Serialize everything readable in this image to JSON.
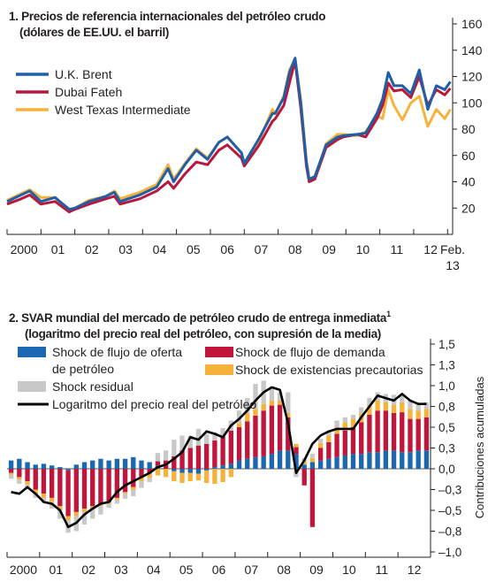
{
  "chart_data": [
    {
      "type": "line",
      "title": "1.  Precios de referencia internacionales del petróleo crudo",
      "subtitle": "(dólares de EE.UU. el barril)",
      "x_tick_labels": [
        "2000",
        "01",
        "02",
        "03",
        "04",
        "05",
        "06",
        "07",
        "08",
        "09",
        "10",
        "11",
        "12",
        "Feb.",
        "13"
      ],
      "y_ticks": [
        "20",
        "40",
        "60",
        "80",
        "100",
        "120",
        "140",
        "160"
      ],
      "ylim": [
        0,
        165
      ],
      "x_range": [
        "2000-01",
        "2013-02"
      ],
      "legend_position": "top-left",
      "grid": false,
      "x_dates": [
        "2000-01",
        "2000-06",
        "2000-09",
        "2001-01",
        "2001-06",
        "2001-11",
        "2002-01",
        "2002-06",
        "2002-12",
        "2003-03",
        "2003-05",
        "2003-12",
        "2004-06",
        "2004-10",
        "2004-12",
        "2005-04",
        "2005-08",
        "2005-12",
        "2006-04",
        "2006-07",
        "2006-12",
        "2007-01",
        "2007-06",
        "2007-11",
        "2007-12",
        "2008-03",
        "2008-05",
        "2008-07",
        "2008-09",
        "2008-11",
        "2008-12",
        "2009-02",
        "2009-06",
        "2009-10",
        "2009-12",
        "2010-05",
        "2010-08",
        "2010-12",
        "2011-02",
        "2011-04",
        "2011-06",
        "2011-09",
        "2011-12",
        "2012-03",
        "2012-06",
        "2012-09",
        "2012-12",
        "2013-02"
      ],
      "series": [
        {
          "name": "U.K. Brent",
          "color": "#1f5fa8",
          "values": [
            25,
            30,
            33,
            25,
            28,
            19,
            20,
            25,
            29,
            32,
            25,
            30,
            36,
            50,
            40,
            53,
            64,
            57,
            70,
            74,
            62,
            54,
            72,
            92,
            92,
            104,
            123,
            134,
            100,
            55,
            42,
            44,
            68,
            74,
            75,
            76,
            77,
            92,
            103,
            123,
            113,
            113,
            107,
            125,
            95,
            113,
            110,
            116
          ]
        },
        {
          "name": "Dubai Fateh",
          "color": "#b7183c",
          "values": [
            23,
            27,
            30,
            23,
            25,
            17,
            19,
            23,
            27,
            29,
            23,
            27,
            33,
            40,
            35,
            46,
            55,
            53,
            64,
            68,
            58,
            52,
            67,
            86,
            88,
            98,
            115,
            132,
            96,
            52,
            40,
            42,
            66,
            72,
            74,
            76,
            74,
            88,
            98,
            115,
            109,
            110,
            104,
            120,
            98,
            110,
            106,
            111
          ]
        },
        {
          "name": "West Texas Intermediate",
          "color": "#f5b33c",
          "values": [
            26,
            31,
            34,
            28,
            28,
            19,
            20,
            26,
            29,
            33,
            27,
            32,
            38,
            53,
            42,
            54,
            65,
            58,
            70,
            74,
            62,
            54,
            70,
            95,
            92,
            105,
            125,
            133,
            103,
            56,
            42,
            42,
            69,
            76,
            76,
            75,
            78,
            90,
            88,
            110,
            98,
            87,
            100,
            105,
            82,
            95,
            88,
            95
          ]
        }
      ]
    },
    {
      "type": "bar",
      "title": "2. SVAR mundial del mercado de petróleo crudo de entrega inmediata",
      "title_footnote": "1",
      "subtitle": "(logaritmo del precio real del petróleo, con supresión de la media)",
      "ylabel": "Contribuciones acumuladas",
      "x_tick_labels": [
        "2000",
        "01",
        "02",
        "03",
        "04",
        "05",
        "06",
        "07",
        "08",
        "09",
        "10",
        "11",
        "12"
      ],
      "y_ticks": [
        "1,5",
        "1,3",
        "1,0",
        "0,8",
        "0,5",
        "0,3",
        "0,0",
        "–0,3",
        "–0,5",
        "–0,8",
        "–1,0"
      ],
      "ylim": [
        -1.0,
        1.5
      ],
      "x_range": [
        "2000-Q1",
        "2012-Q4"
      ],
      "legend_position": "top-left",
      "stacked": true,
      "categories": [
        "2000-Q1",
        "2000-Q2",
        "2000-Q3",
        "2000-Q4",
        "2001-Q1",
        "2001-Q2",
        "2001-Q3",
        "2001-Q4",
        "2002-Q1",
        "2002-Q2",
        "2002-Q3",
        "2002-Q4",
        "2003-Q1",
        "2003-Q2",
        "2003-Q3",
        "2003-Q4",
        "2004-Q1",
        "2004-Q2",
        "2004-Q3",
        "2004-Q4",
        "2005-Q1",
        "2005-Q2",
        "2005-Q3",
        "2005-Q4",
        "2006-Q1",
        "2006-Q2",
        "2006-Q3",
        "2006-Q4",
        "2007-Q1",
        "2007-Q2",
        "2007-Q3",
        "2007-Q4",
        "2008-Q1",
        "2008-Q2",
        "2008-Q3",
        "2008-Q4",
        "2009-Q1",
        "2009-Q2",
        "2009-Q3",
        "2009-Q4",
        "2010-Q1",
        "2010-Q2",
        "2010-Q3",
        "2010-Q4",
        "2011-Q1",
        "2011-Q2",
        "2011-Q3",
        "2011-Q4",
        "2012-Q1",
        "2012-Q2",
        "2012-Q3",
        "2012-Q4"
      ],
      "series": [
        {
          "name": "Shock de flujo de oferta de petróleo",
          "color": "#1b67b0",
          "values": [
            0.1,
            0.12,
            0.08,
            0.05,
            0.06,
            0.04,
            0.02,
            -0.02,
            0.05,
            0.08,
            0.1,
            0.12,
            0.1,
            0.12,
            0.12,
            0.14,
            0.1,
            0.08,
            0.04,
            0.0,
            -0.03,
            -0.05,
            -0.05,
            -0.06,
            -0.02,
            0.02,
            0.04,
            0.06,
            0.1,
            0.12,
            0.14,
            0.15,
            0.18,
            0.22,
            0.22,
            0.18,
            0.05,
            0.08,
            0.1,
            0.12,
            0.14,
            0.16,
            0.18,
            0.18,
            0.2,
            0.2,
            0.22,
            0.22,
            0.2,
            0.2,
            0.22,
            0.22
          ]
        },
        {
          "name": "Shock de flujo de demanda",
          "color": "#c0163c",
          "values": [
            -0.05,
            -0.1,
            -0.15,
            -0.25,
            -0.3,
            -0.35,
            -0.45,
            -0.55,
            -0.52,
            -0.48,
            -0.45,
            -0.42,
            -0.4,
            -0.35,
            -0.28,
            -0.22,
            -0.1,
            -0.05,
            0.05,
            0.1,
            0.15,
            0.22,
            0.25,
            0.28,
            0.3,
            0.32,
            0.35,
            0.4,
            0.4,
            0.45,
            0.5,
            0.55,
            0.58,
            0.55,
            0.4,
            0.08,
            -0.2,
            -0.7,
            0.15,
            0.2,
            0.28,
            0.3,
            0.32,
            0.38,
            0.45,
            0.5,
            0.48,
            0.45,
            0.48,
            0.4,
            0.38,
            0.4
          ]
        },
        {
          "name": "Shock de existencias precautorias",
          "color": "#f5b33c",
          "values": [
            -0.02,
            -0.03,
            -0.04,
            -0.05,
            -0.05,
            -0.05,
            -0.05,
            -0.05,
            -0.05,
            -0.04,
            -0.03,
            -0.03,
            -0.02,
            -0.02,
            -0.02,
            -0.03,
            -0.05,
            -0.06,
            -0.08,
            -0.1,
            -0.12,
            -0.12,
            -0.1,
            -0.08,
            -0.15,
            -0.18,
            -0.16,
            -0.1,
            0.05,
            0.1,
            0.08,
            0.08,
            0.06,
            0.05,
            0.05,
            0.04,
            0.03,
            0.05,
            0.06,
            0.08,
            0.08,
            0.1,
            0.1,
            0.1,
            0.12,
            0.12,
            0.1,
            0.1,
            0.12,
            0.12,
            0.1,
            0.1
          ]
        },
        {
          "name": "Shock residual",
          "color": "#c8c8c8",
          "values": [
            -0.05,
            -0.05,
            -0.04,
            -0.05,
            -0.06,
            -0.08,
            -0.1,
            -0.15,
            -0.18,
            -0.15,
            -0.12,
            -0.1,
            -0.05,
            -0.05,
            -0.06,
            -0.08,
            -0.08,
            -0.05,
            0.1,
            0.12,
            0.2,
            0.18,
            0.15,
            0.2,
            0.12,
            0.1,
            0.1,
            0.12,
            0.15,
            0.18,
            0.3,
            0.28,
            0.15,
            0.1,
            0.25,
            -0.1,
            0.05,
            0.05,
            0.05,
            0.05,
            0.08,
            0.06,
            0.05,
            0.08,
            0.08,
            0.1,
            0.1,
            0.12,
            0.1,
            0.1,
            0.08,
            0.08
          ]
        },
        {
          "name": "Logaritmo del precio real del petróleo",
          "color": "#000000",
          "type": "line",
          "values": [
            -0.28,
            -0.3,
            -0.22,
            -0.3,
            -0.4,
            -0.42,
            -0.5,
            -0.7,
            -0.65,
            -0.55,
            -0.48,
            -0.42,
            -0.4,
            -0.28,
            -0.2,
            -0.15,
            -0.1,
            -0.05,
            0.02,
            0.05,
            0.12,
            0.2,
            0.38,
            0.35,
            0.45,
            0.42,
            0.38,
            0.52,
            0.6,
            0.7,
            0.82,
            0.92,
            0.98,
            0.95,
            0.55,
            -0.05,
            0.1,
            0.3,
            0.4,
            0.45,
            0.48,
            0.48,
            0.48,
            0.62,
            0.75,
            0.88,
            0.85,
            0.82,
            0.9,
            0.82,
            0.78,
            0.78
          ]
        }
      ]
    }
  ]
}
